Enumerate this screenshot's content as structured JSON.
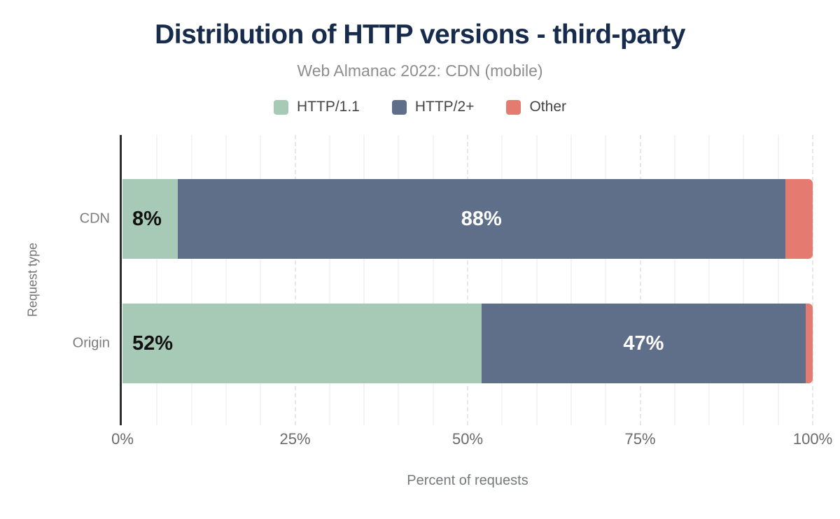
{
  "header": {
    "title": "Distribution of HTTP versions - third-party",
    "subtitle": "Web Almanac 2022: CDN (mobile)"
  },
  "colors": {
    "title_navy": "#172b4d",
    "subtitle_gray": "#8e8e8e",
    "axis_line": "#2e2e2e",
    "tick_gray": "#6b6b6b",
    "category_gray": "#7d7d7d",
    "minor_gridline": "#f4f4f4",
    "major_gridline": "#e7e7e7",
    "http11_green": "#a6cab6",
    "http2_slate": "#5f6f8a",
    "other_red": "#e57a71"
  },
  "chart_data": {
    "type": "bar",
    "orientation": "horizontal",
    "stacked": true,
    "title": "Distribution of HTTP versions - third-party",
    "subtitle": "Web Almanac 2022: CDN (mobile)",
    "categories": [
      "CDN",
      "Origin"
    ],
    "series": [
      {
        "name": "HTTP/1.1",
        "color": "#a6cab6",
        "values": [
          8,
          52
        ],
        "labels": [
          "8%",
          "52%"
        ],
        "label_color": "#111111",
        "label_align": "left"
      },
      {
        "name": "HTTP/2+",
        "color": "#5f6f8a",
        "values": [
          88,
          47
        ],
        "labels": [
          "88%",
          "47%"
        ],
        "label_color": "#ffffff",
        "label_align": "center"
      },
      {
        "name": "Other",
        "color": "#e57a71",
        "values": [
          4,
          1
        ],
        "labels": [
          "",
          ""
        ],
        "label_color": "#ffffff",
        "label_align": "center"
      }
    ],
    "xlabel": "Percent of requests",
    "ylabel": "Request type",
    "xlim": [
      0,
      100
    ],
    "x_ticks": [
      "0%",
      "25%",
      "50%",
      "75%",
      "100%"
    ],
    "x_tick_values": [
      0,
      25,
      50,
      75,
      100
    ],
    "grid": {
      "minor_step": 5,
      "major_step": 25,
      "dashed_major": true
    },
    "legend_position": "top"
  }
}
